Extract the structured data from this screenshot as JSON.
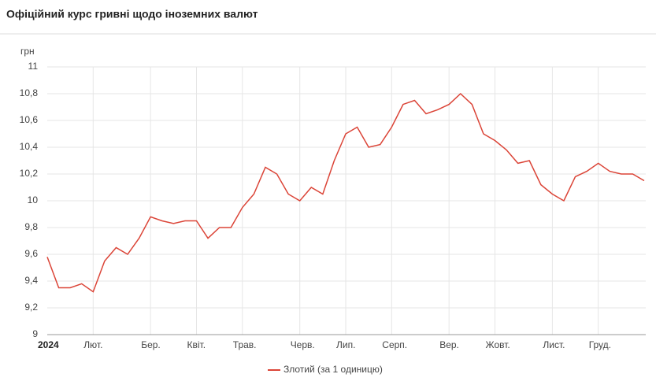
{
  "chart_data": {
    "type": "line",
    "title": "Офіційний курс гривні щодо іноземних валют",
    "y_label": "грн",
    "categories": [
      "2024",
      null,
      null,
      null,
      "Лют.",
      null,
      null,
      null,
      null,
      "Бер.",
      null,
      null,
      null,
      "Квіт.",
      null,
      null,
      null,
      "Трав.",
      null,
      null,
      null,
      null,
      "Черв.",
      null,
      null,
      null,
      "Лип.",
      null,
      null,
      null,
      "Серп.",
      null,
      null,
      null,
      null,
      "Вер.",
      null,
      null,
      null,
      "Жовт.",
      null,
      null,
      null,
      null,
      "Лист.",
      null,
      null,
      null,
      "Груд.",
      null,
      null,
      null,
      null
    ],
    "series": [
      {
        "name": "Злотий (за 1 одиницю)",
        "color": "#db4437",
        "values": [
          9.58,
          9.35,
          9.35,
          9.38,
          9.32,
          9.55,
          9.65,
          9.6,
          9.72,
          9.88,
          9.85,
          9.83,
          9.85,
          9.85,
          9.72,
          9.8,
          9.8,
          9.95,
          10.05,
          10.25,
          10.2,
          10.05,
          10.0,
          10.1,
          10.05,
          10.3,
          10.5,
          10.55,
          10.4,
          10.42,
          10.55,
          10.72,
          10.75,
          10.65,
          10.68,
          10.72,
          10.8,
          10.72,
          10.5,
          10.45,
          10.38,
          10.28,
          10.3,
          10.12,
          10.05,
          10.0,
          10.18,
          10.22,
          10.28,
          10.22,
          10.2,
          10.2,
          10.15
        ]
      }
    ],
    "ylim": [
      9,
      11
    ],
    "yticks": [
      9,
      {
        "value": 9.2,
        "label": "9,2"
      },
      {
        "value": 9.4,
        "label": "9,4"
      },
      {
        "value": 9.6,
        "label": "9,6"
      },
      {
        "value": 9.8,
        "label": "9,8"
      },
      10,
      {
        "value": 10.2,
        "label": "10,2"
      },
      {
        "value": 10.4,
        "label": "10,4"
      },
      {
        "value": 10.6,
        "label": "10,6"
      },
      {
        "value": 10.8,
        "label": "10,8"
      },
      11
    ],
    "grid": true
  }
}
